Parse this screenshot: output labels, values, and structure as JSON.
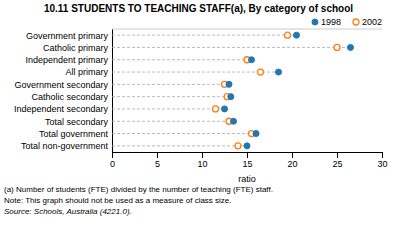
{
  "chart_data": {
    "type": "dot",
    "title": "10.11  STUDENTS TO TEACHING STAFF(a), By category of school",
    "orientation": "horizontal",
    "categories": [
      "Government primary",
      "Catholic primary",
      "Independent primary",
      "All primary",
      "Government secondary",
      "Catholic secondary",
      "Independent secondary",
      "Total secondary",
      "Total government",
      "Total non-government"
    ],
    "series": [
      {
        "name": "1998",
        "marker": "filled",
        "values": [
          20.5,
          26.5,
          15.5,
          18.5,
          13.0,
          13.2,
          12.5,
          13.5,
          16.0,
          15.0
        ]
      },
      {
        "name": "2002",
        "marker": "open",
        "values": [
          19.5,
          25.0,
          15.0,
          16.5,
          12.5,
          12.8,
          11.5,
          13.0,
          15.5,
          14.0
        ]
      }
    ],
    "xlabel": "ratio",
    "xlim": [
      0,
      30
    ],
    "xticks": [
      0,
      5,
      10,
      15,
      20,
      25,
      30
    ],
    "grid": false,
    "legend": "upper right",
    "annotations": [
      "(a) Number of students (FTE) divided by the number of teaching (FTE) staff.",
      "Note: This graph should not be used as a measure of class size.",
      "Source: Schools, Australia (4221.0)."
    ]
  }
}
